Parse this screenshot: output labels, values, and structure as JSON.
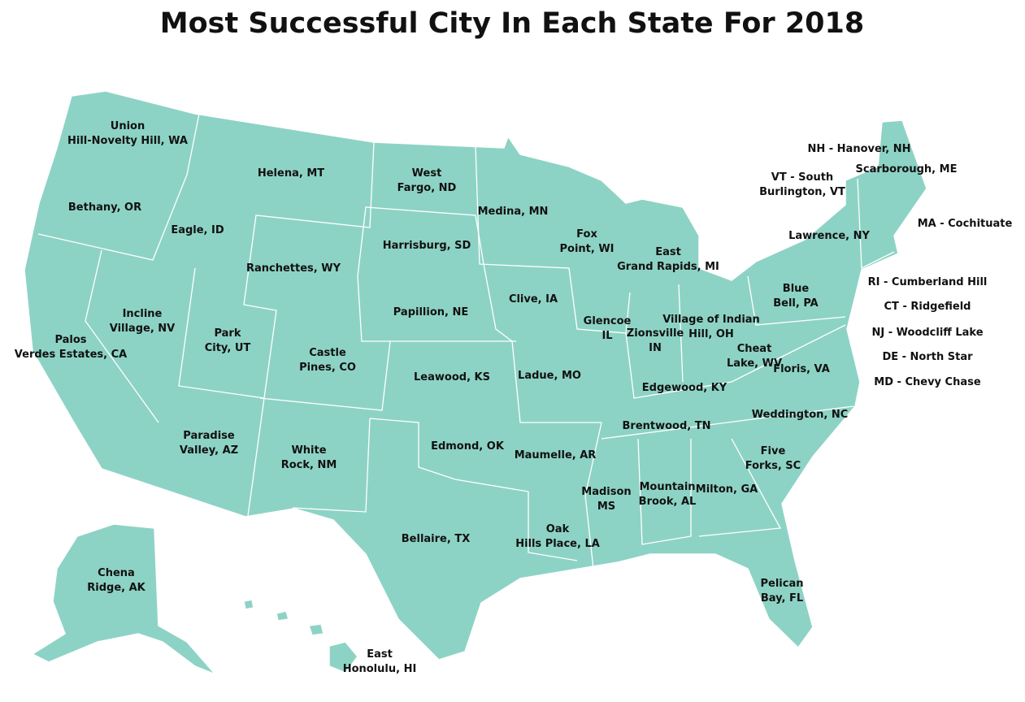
{
  "title": "Most Successful City In Each State For 2018",
  "labels": [
    {
      "lines": [
        "Union",
        "Hill-Novelty Hill, WA"
      ]
    },
    {
      "lines": [
        "Helena, MT"
      ]
    },
    {
      "lines": [
        "West",
        "Fargo, ND"
      ]
    },
    {
      "lines": [
        "Bethany, OR"
      ]
    },
    {
      "lines": [
        "Eagle, ID"
      ]
    },
    {
      "lines": [
        "Medina, MN"
      ]
    },
    {
      "lines": [
        "Fox",
        "Point, WI"
      ]
    },
    {
      "lines": [
        "Harrisburg, SD"
      ]
    },
    {
      "lines": [
        "Ranchettes, WY"
      ]
    },
    {
      "lines": [
        "East",
        "Grand Rapids, MI"
      ]
    },
    {
      "lines": [
        "Clive, IA"
      ]
    },
    {
      "lines": [
        "Papillion, NE"
      ]
    },
    {
      "lines": [
        "Incline",
        "Village, NV"
      ]
    },
    {
      "lines": [
        "Blue",
        "Bell, PA"
      ]
    },
    {
      "lines": [
        "Village of Indian",
        "Hill, OH"
      ]
    },
    {
      "lines": [
        "Glencoe",
        "IL"
      ]
    },
    {
      "lines": [
        "Zionsville",
        "IN"
      ]
    },
    {
      "lines": [
        "Park",
        "City, UT"
      ]
    },
    {
      "lines": [
        "Palos",
        "Verdes Estates, CA"
      ]
    },
    {
      "lines": [
        "Castle",
        "Pines, CO"
      ]
    },
    {
      "lines": [
        "Cheat",
        "Lake, WV"
      ]
    },
    {
      "lines": [
        "Floris, VA"
      ]
    },
    {
      "lines": [
        "Leawood, KS"
      ]
    },
    {
      "lines": [
        "Ladue, MO"
      ]
    },
    {
      "lines": [
        "Edgewood, KY"
      ]
    },
    {
      "lines": [
        "Weddington, NC"
      ]
    },
    {
      "lines": [
        "Brentwood, TN"
      ]
    },
    {
      "lines": [
        "Paradise",
        "Valley, AZ"
      ]
    },
    {
      "lines": [
        "Edmond, OK"
      ]
    },
    {
      "lines": [
        "White",
        "Rock, NM"
      ]
    },
    {
      "lines": [
        "Maumelle, AR"
      ]
    },
    {
      "lines": [
        "Five",
        "Forks, SC"
      ]
    },
    {
      "lines": [
        "Madison",
        "MS"
      ]
    },
    {
      "lines": [
        "Mountain",
        "Brook, AL"
      ]
    },
    {
      "lines": [
        "Milton, GA"
      ]
    },
    {
      "lines": [
        "Oak",
        "Hills Place, LA"
      ]
    },
    {
      "lines": [
        "Bellaire, TX"
      ]
    },
    {
      "lines": [
        "Chena",
        "Ridge, AK"
      ]
    },
    {
      "lines": [
        "Pelican",
        "Bay, FL"
      ]
    },
    {
      "lines": [
        "East",
        "Honolulu, HI"
      ]
    },
    {
      "lines": [
        "NH - Hanover, NH"
      ]
    },
    {
      "lines": [
        "Scarborough, ME"
      ]
    },
    {
      "lines": [
        "VT - South",
        "Burlington, VT"
      ]
    },
    {
      "lines": [
        "MA - Cochituate"
      ]
    },
    {
      "lines": [
        "Lawrence, NY"
      ]
    },
    {
      "lines": [
        "RI - Cumberland Hill"
      ]
    },
    {
      "lines": [
        "CT - Ridgefield"
      ]
    },
    {
      "lines": [
        "NJ - Woodcliff Lake"
      ]
    },
    {
      "lines": [
        "DE - North Star"
      ]
    },
    {
      "lines": [
        "MD - Chevy Chase"
      ]
    }
  ]
}
